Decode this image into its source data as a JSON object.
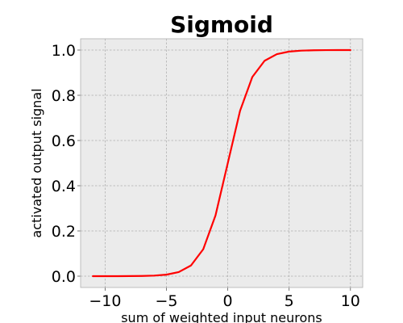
{
  "chart_data": {
    "type": "line",
    "title": "Sigmoid",
    "xlabel": "sum of weighted input neurons",
    "ylabel": "activated output signal",
    "xlim": [
      -12,
      11
    ],
    "ylim": [
      -0.05,
      1.05
    ],
    "x_ticks": [
      -10,
      -5,
      0,
      5,
      10
    ],
    "x_tick_labels": [
      "−10",
      "−5",
      "0",
      "5",
      "10"
    ],
    "y_ticks": [
      0.0,
      0.2,
      0.4,
      0.6,
      0.8,
      1.0
    ],
    "y_tick_labels": [
      "0.0",
      "0.2",
      "0.4",
      "0.6",
      "0.8",
      "1.0"
    ],
    "grid": true,
    "series": [
      {
        "color": "#ff0000",
        "x": [
          -11,
          -10,
          -9,
          -8,
          -7,
          -6,
          -5,
          -4,
          -3,
          -2,
          -1,
          0,
          1,
          2,
          3,
          4,
          5,
          6,
          7,
          8,
          9,
          10
        ],
        "y": [
          1.67e-05,
          4.54e-05,
          0.000123,
          0.000335,
          0.000911,
          0.00247,
          0.00669,
          0.018,
          0.0474,
          0.1192,
          0.2689,
          0.5,
          0.7311,
          0.8808,
          0.9526,
          0.982,
          0.9933,
          0.9975,
          0.9991,
          0.9997,
          0.9999,
          1.0
        ]
      }
    ]
  },
  "colors": {
    "plot_background": "#ebebeb",
    "line": "#ff0000",
    "grid": "#b0b0b0"
  }
}
